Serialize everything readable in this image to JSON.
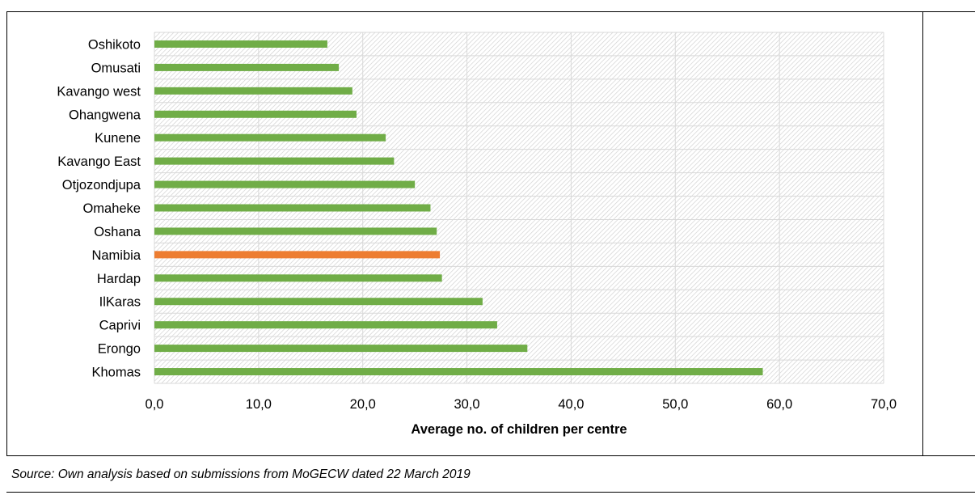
{
  "chart_data": {
    "type": "bar",
    "orientation": "horizontal",
    "title": "",
    "xlabel": "Average no. of children per centre",
    "ylabel": "",
    "xlim": [
      0,
      70
    ],
    "x_ticks": [
      "0,0",
      "10,0",
      "20,0",
      "30,0",
      "40,0",
      "50,0",
      "60,0",
      "70,0"
    ],
    "grid": true,
    "legend": "none",
    "categories": [
      "Oshikoto",
      "Omusati",
      "Kavango west",
      "Ohangwena",
      "Kunene",
      "Kavango East",
      "Otjozondjupa",
      "Omaheke",
      "Oshana",
      "Namibia",
      "Hardap",
      "IlKaras",
      "Caprivi",
      "Erongo",
      "Khomas"
    ],
    "values": [
      16.6,
      17.7,
      19.0,
      19.4,
      22.2,
      23.0,
      25.0,
      26.5,
      27.1,
      27.4,
      27.6,
      31.5,
      32.9,
      35.8,
      58.4
    ],
    "colors": [
      "#70ad47",
      "#70ad47",
      "#70ad47",
      "#70ad47",
      "#70ad47",
      "#70ad47",
      "#70ad47",
      "#70ad47",
      "#70ad47",
      "#ed7d31",
      "#70ad47",
      "#70ad47",
      "#70ad47",
      "#70ad47",
      "#70ad47"
    ],
    "bar_color": "#70ad47",
    "highlight_color": "#ed7d31",
    "plot_background": "hatched grey"
  },
  "footer": {
    "source": "Source: Own analysis based on submissions from MoGECW dated 22 March 2019"
  }
}
